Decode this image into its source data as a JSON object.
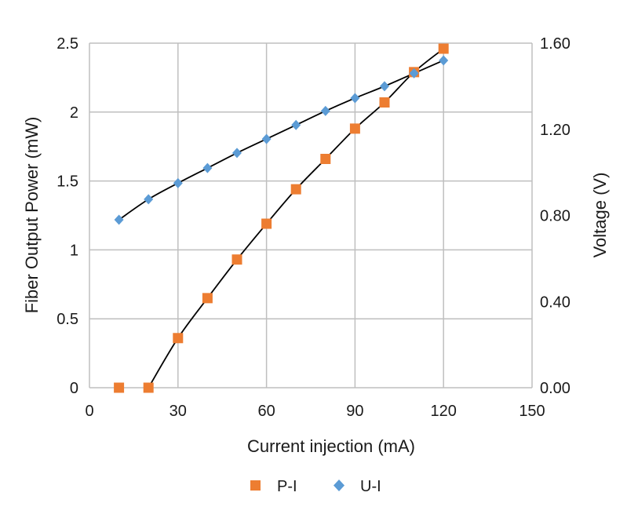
{
  "chart_data": {
    "type": "scatter",
    "xlabel": "Current injection (mA)",
    "ylabel": "Fiber Output Power (mW)",
    "y2label": "Voltage (V)",
    "xlim": [
      0,
      150
    ],
    "ylim": [
      0,
      2.5
    ],
    "y2lim": [
      0,
      1.6
    ],
    "x_ticks": [
      0,
      30,
      60,
      90,
      120,
      150
    ],
    "y_ticks": [
      0,
      0.5,
      1,
      1.5,
      2,
      2.5
    ],
    "y_tick_labels": [
      "0",
      "0.5",
      "1",
      "1.5",
      "2",
      "2.5"
    ],
    "y2_ticks": [
      0,
      0.4,
      0.8,
      1.2,
      1.6
    ],
    "y2_tick_labels": [
      "0.00",
      "0.40",
      "0.80",
      "1.20",
      "1.60"
    ],
    "grid": true,
    "legend_position": "bottom",
    "series": [
      {
        "name": "P-I",
        "axis": "left",
        "marker": "square",
        "color": "#ED7D31",
        "x": [
          10,
          20,
          30,
          40,
          50,
          60,
          70,
          80,
          90,
          100,
          110,
          120
        ],
        "y": [
          0,
          0,
          0.36,
          0.65,
          0.93,
          1.19,
          1.44,
          1.66,
          1.88,
          2.07,
          2.29,
          2.46
        ]
      },
      {
        "name": "U-I",
        "axis": "right",
        "marker": "diamond",
        "color": "#5B9BD5",
        "x": [
          10,
          20,
          30,
          40,
          50,
          60,
          70,
          80,
          90,
          100,
          110,
          120
        ],
        "y": [
          0.78,
          0.875,
          0.95,
          1.02,
          1.09,
          1.155,
          1.22,
          1.285,
          1.345,
          1.4,
          1.46,
          1.52
        ]
      }
    ],
    "trendline_color": "#000000"
  }
}
